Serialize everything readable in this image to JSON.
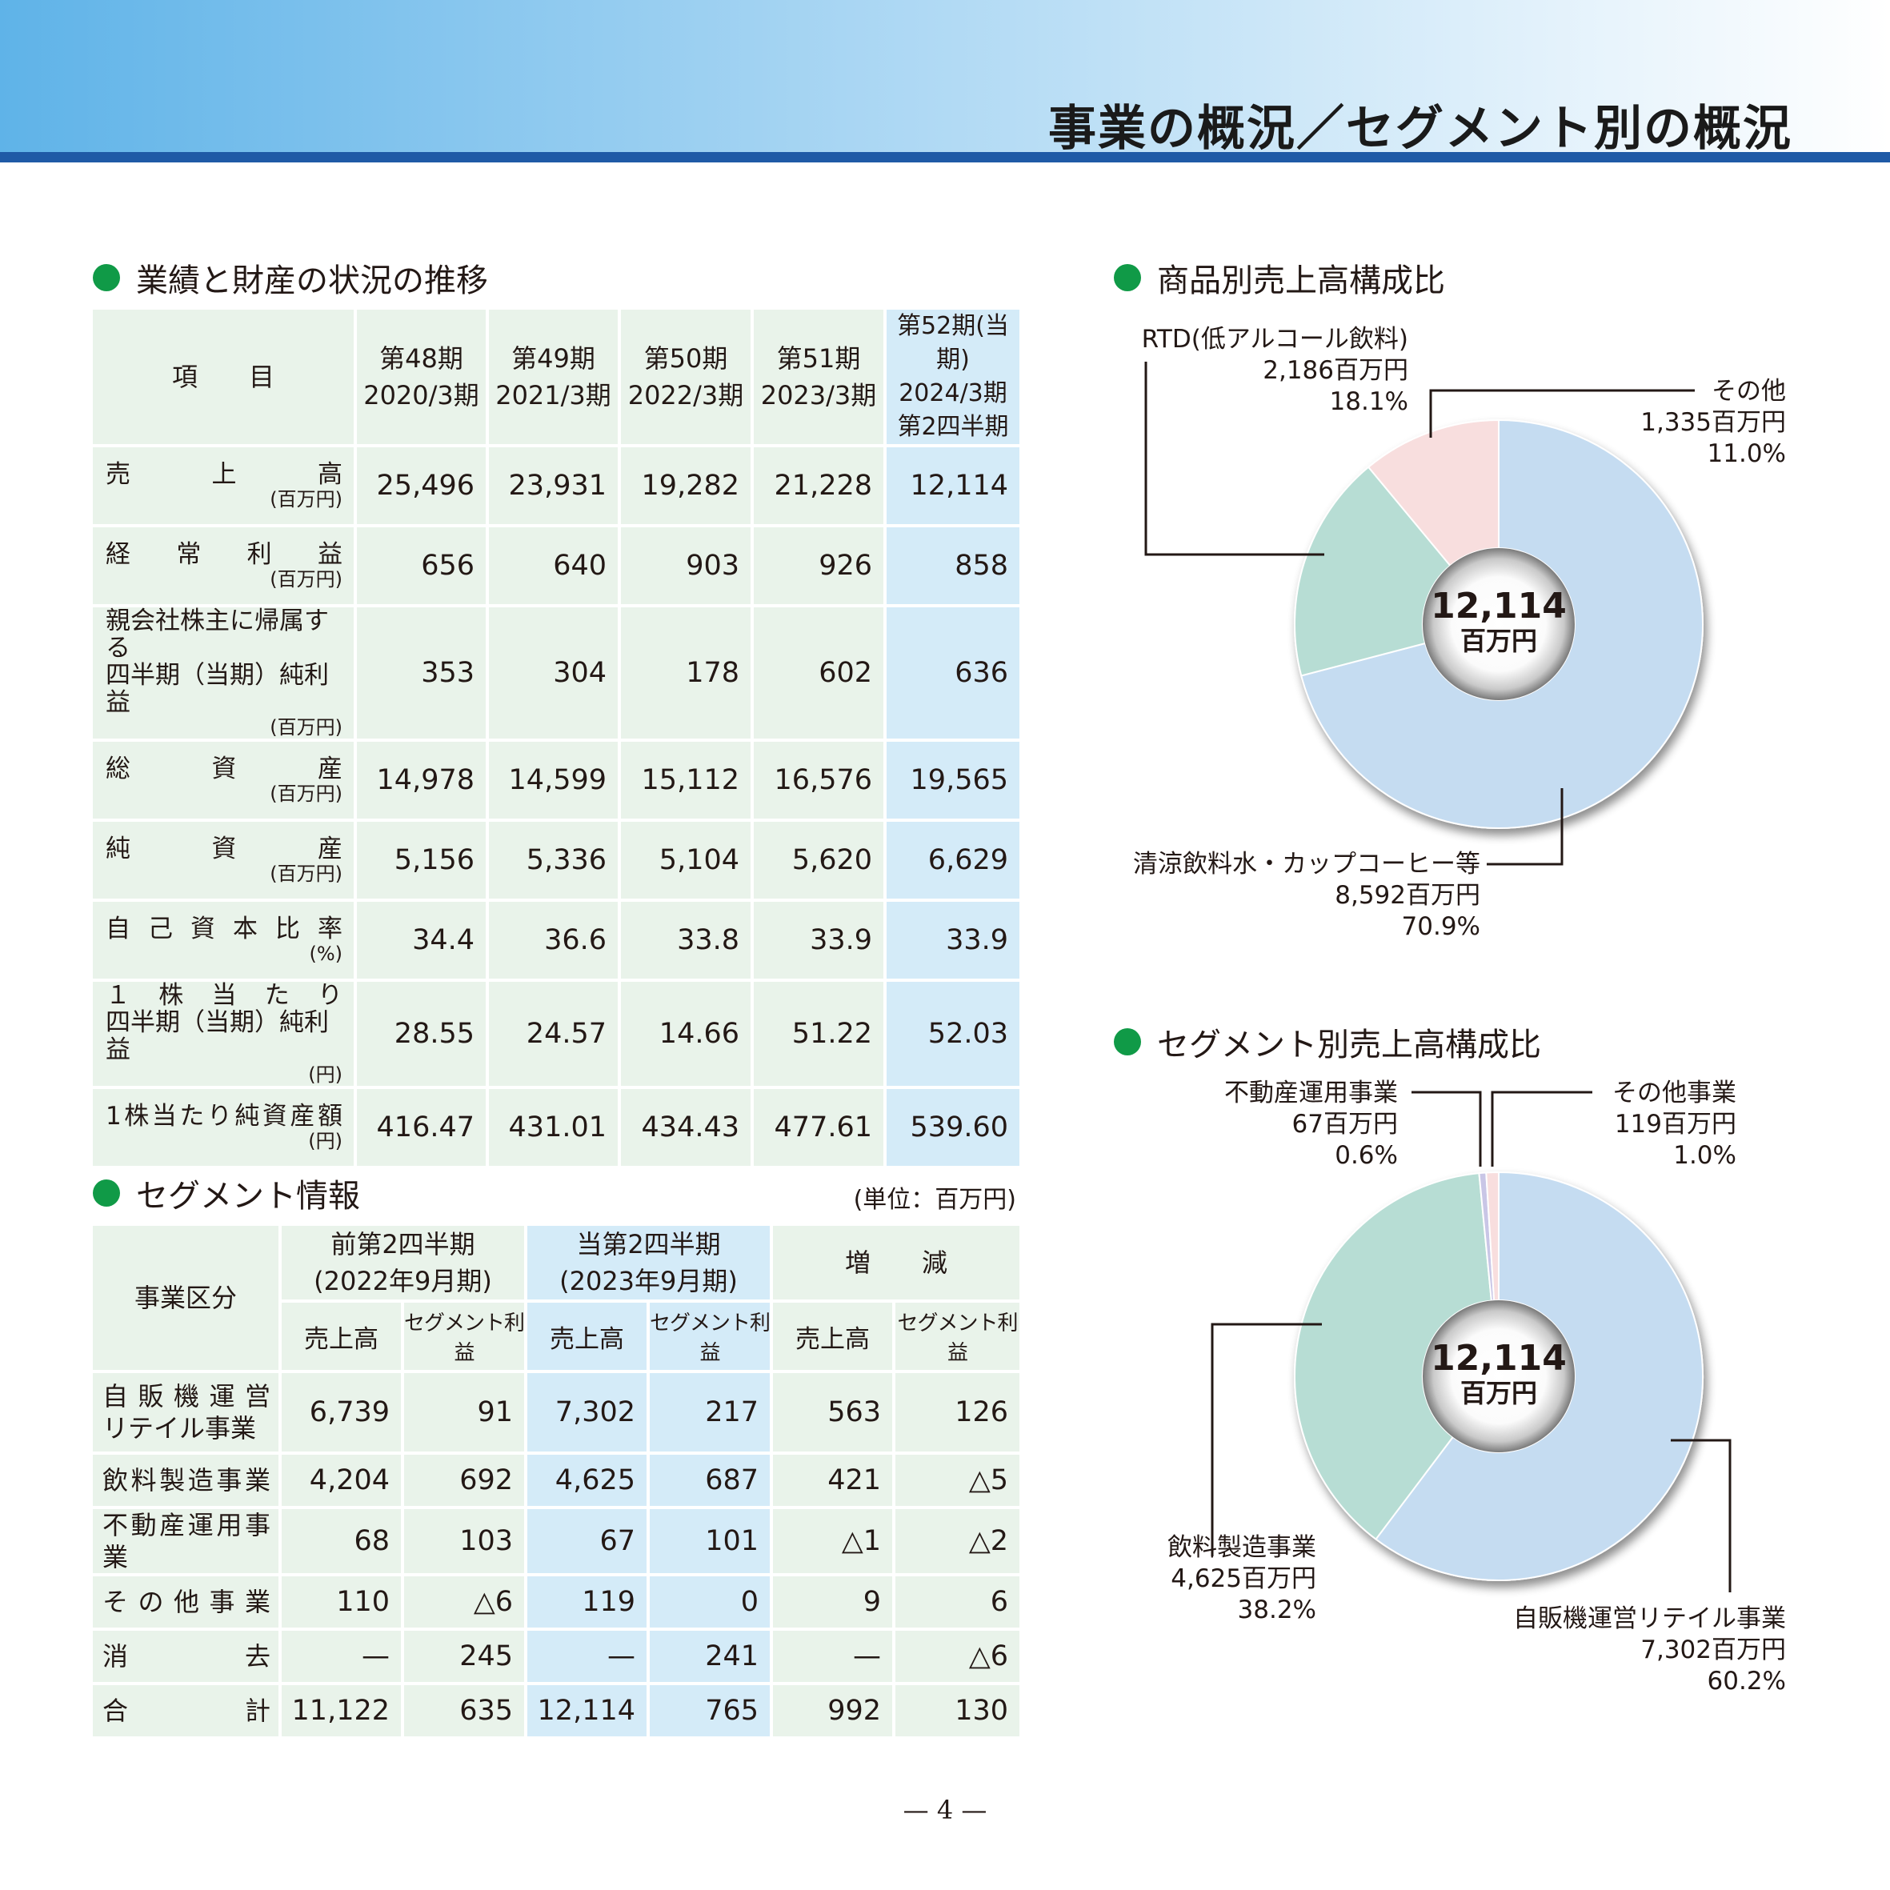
{
  "page": {
    "title": "事業の概況／セグメント別の概況",
    "page_number": "— 4 —"
  },
  "colors": {
    "header_start": "#5fb3e8",
    "header_rule": "#1f5aa6",
    "bullet": "#109a47",
    "table_bg": "#e9f3ea",
    "current_bg": "#d4ebf8",
    "donut_blue": "#c5dcf1",
    "donut_green": "#b7ddd4",
    "donut_pink": "#f8dede",
    "donut_lavender": "#c9c6e6"
  },
  "performance": {
    "section_title": "業績と財産の状況の推移",
    "header_item": "項　　目",
    "columns": [
      {
        "line1": "第48期",
        "line2": "2020/3期"
      },
      {
        "line1": "第49期",
        "line2": "2021/3期"
      },
      {
        "line1": "第50期",
        "line2": "2022/3期"
      },
      {
        "line1": "第51期",
        "line2": "2023/3期"
      }
    ],
    "current_column": {
      "line1": "第52期(当期)",
      "line2": "2024/3期",
      "line3": "第2四半期"
    },
    "rows": [
      {
        "label": "売　　上　　高",
        "label2": "",
        "unit": "(百万円)",
        "values": [
          "25,496",
          "23,931",
          "19,282",
          "21,228",
          "12,114"
        ]
      },
      {
        "label": "経　常　利　益",
        "label2": "",
        "unit": "(百万円)",
        "values": [
          "656",
          "640",
          "903",
          "926",
          "858"
        ]
      },
      {
        "label": "親会社株主に帰属する",
        "label2": "四半期（当期）純利益",
        "unit": "(百万円)",
        "values": [
          "353",
          "304",
          "178",
          "602",
          "636"
        ]
      },
      {
        "label": "総　　資　　産",
        "label2": "",
        "unit": "(百万円)",
        "values": [
          "14,978",
          "14,599",
          "15,112",
          "16,576",
          "19,565"
        ]
      },
      {
        "label": "純　　資　　産",
        "label2": "",
        "unit": "(百万円)",
        "values": [
          "5,156",
          "5,336",
          "5,104",
          "5,620",
          "6,629"
        ]
      },
      {
        "label": "自 己 資 本 比 率",
        "label2": "",
        "unit": "(%)",
        "values": [
          "34.4",
          "36.6",
          "33.8",
          "33.9",
          "33.9"
        ]
      },
      {
        "label": "１　株　当　た　り",
        "label2": "四半期（当期）純利益",
        "unit": "(円)",
        "values": [
          "28.55",
          "24.57",
          "14.66",
          "51.22",
          "52.03"
        ]
      },
      {
        "label": "1株当たり純資産額",
        "label2": "",
        "unit": "(円)",
        "values": [
          "416.47",
          "431.01",
          "434.43",
          "477.61",
          "539.60"
        ]
      }
    ]
  },
  "segment_info": {
    "section_title": "セグメント情報",
    "unit_note": "(単位：百万円)",
    "header_category": "事業区分",
    "groups": [
      {
        "line1": "前第2四半期",
        "line2": "(2022年9月期)"
      },
      {
        "line1": "当第2四半期",
        "line2": "(2023年9月期)"
      },
      {
        "line1": "増　　減",
        "line2": ""
      }
    ],
    "sub_headers": [
      "売上高",
      "セグメント利益",
      "売上高",
      "セグメント利益",
      "売上高",
      "セグメント利益"
    ],
    "rows": [
      {
        "label": "自 販 機 運 営",
        "label2": "リテイル事業",
        "values": [
          "6,739",
          "91",
          "7,302",
          "217",
          "563",
          "126"
        ]
      },
      {
        "label": "飲料製造事業",
        "label2": "",
        "values": [
          "4,204",
          "692",
          "4,625",
          "687",
          "421",
          "△5"
        ]
      },
      {
        "label": "不動産運用事業",
        "label2": "",
        "values": [
          "68",
          "103",
          "67",
          "101",
          "△1",
          "△2"
        ]
      },
      {
        "label": "そ の 他 事 業",
        "label2": "",
        "values": [
          "110",
          "△6",
          "119",
          "0",
          "9",
          "6"
        ]
      },
      {
        "label": "消　　　　去",
        "label2": "",
        "values": [
          "—",
          "245",
          "—",
          "241",
          "—",
          "△6"
        ]
      },
      {
        "label": "合　　　　計",
        "label2": "",
        "values": [
          "11,122",
          "635",
          "12,114",
          "765",
          "992",
          "130"
        ]
      }
    ]
  },
  "chart_data": [
    {
      "type": "pie",
      "title": "商品別売上高構成比",
      "center_value": "12,114",
      "center_unit": "百万円",
      "slices": [
        {
          "label": "清涼飲料水・カップコーヒー等",
          "value": 8592,
          "value_text": "8,592百万円",
          "percent_text": "70.9%",
          "color": "#c5dcf1"
        },
        {
          "label": "RTD(低アルコール飲料)",
          "value": 2186,
          "value_text": "2,186百万円",
          "percent_text": "18.1%",
          "color": "#b7ddd4"
        },
        {
          "label": "その他",
          "value": 1335,
          "value_text": "1,335百万円",
          "percent_text": "11.0%",
          "color": "#f8dede"
        }
      ]
    },
    {
      "type": "pie",
      "title": "セグメント別売上高構成比",
      "center_value": "12,114",
      "center_unit": "百万円",
      "slices": [
        {
          "label": "自販機運営リテイル事業",
          "value": 7302,
          "value_text": "7,302百万円",
          "percent_text": "60.2%",
          "color": "#c5dcf1"
        },
        {
          "label": "飲料製造事業",
          "value": 4625,
          "value_text": "4,625百万円",
          "percent_text": "38.2%",
          "color": "#b7ddd4"
        },
        {
          "label": "不動産運用事業",
          "value": 67,
          "value_text": "67百万円",
          "percent_text": "0.6%",
          "color": "#c9c6e6"
        },
        {
          "label": "その他事業",
          "value": 119,
          "value_text": "119百万円",
          "percent_text": "1.0%",
          "color": "#f8dede"
        }
      ]
    }
  ]
}
